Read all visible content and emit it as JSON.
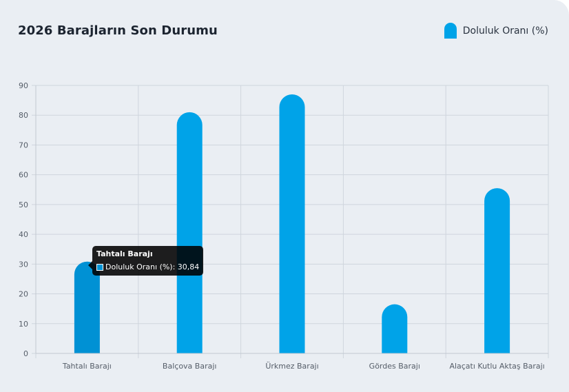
{
  "card": {
    "title": "2026 Barajların Son Durumu"
  },
  "legend": {
    "label": "Doluluk Oranı (%)"
  },
  "tooltip": {
    "title": "Tahtalı Barajı",
    "text": "Doluluk Oranı (%): 30,84"
  },
  "colors": {
    "bar": "#00a3e8",
    "bar_active": "#0091d4",
    "grid": "#cfd5dd"
  },
  "chart_data": {
    "type": "bar",
    "title": "2026 Barajların Son Durumu",
    "categories": [
      "Tahtalı Barajı",
      "Balçova Barajı",
      "Ürkmez Barajı",
      "Gördes Barajı",
      "Alaçatı Kutlu Aktaş Barajı"
    ],
    "series": [
      {
        "name": "Doluluk Oranı (%)",
        "values": [
          30.84,
          81,
          87,
          16.5,
          55.5
        ]
      }
    ],
    "ylim": [
      0,
      90
    ],
    "yticks": [
      0,
      10,
      20,
      30,
      40,
      50,
      60,
      70,
      80,
      90
    ],
    "grid": true,
    "legend_position": "top-right",
    "active_category": "Tahtalı Barajı"
  }
}
